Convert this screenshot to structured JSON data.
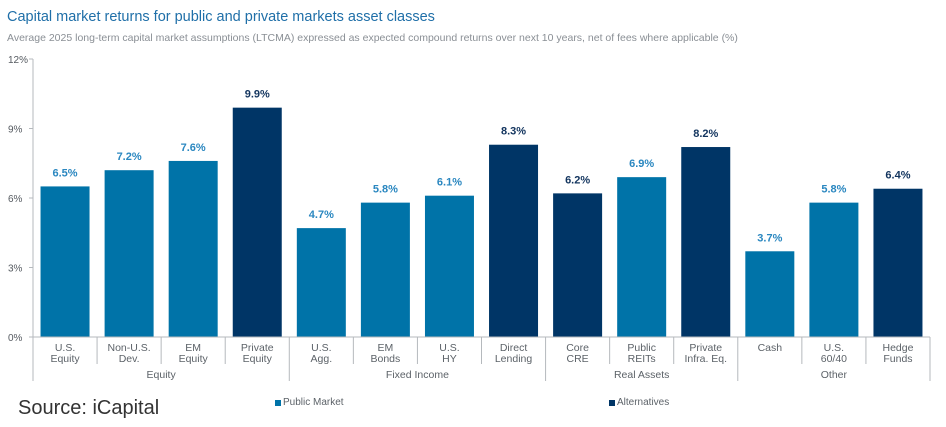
{
  "chart_data": {
    "type": "bar",
    "title": "Capital market returns for public and private markets asset classes",
    "subtitle": "Average 2025 long-term capital market assumptions (LTCMA) expressed as expected compound returns over next 10 years, net of fees where applicable (%)",
    "xlabel": "",
    "ylabel": "",
    "ylim": [
      0,
      12
    ],
    "yticks": [
      0,
      3,
      6,
      9,
      12
    ],
    "ytick_labels": [
      "0%",
      "3%",
      "6%",
      "9%",
      "12%"
    ],
    "grid": false,
    "legend_position": "bottom",
    "categories": [
      {
        "lines": [
          "U.S.",
          "Equity"
        ],
        "value": 6.5,
        "label": "6.5%",
        "series": "Public Market"
      },
      {
        "lines": [
          "Non-U.S.",
          "Dev."
        ],
        "value": 7.2,
        "label": "7.2%",
        "series": "Public Market"
      },
      {
        "lines": [
          "EM",
          "Equity"
        ],
        "value": 7.6,
        "label": "7.6%",
        "series": "Public Market"
      },
      {
        "lines": [
          "Private",
          "Equity"
        ],
        "value": 9.9,
        "label": "9.9%",
        "series": "Alternatives"
      },
      {
        "lines": [
          "U.S.",
          "Agg."
        ],
        "value": 4.7,
        "label": "4.7%",
        "series": "Public Market"
      },
      {
        "lines": [
          "EM",
          "Bonds"
        ],
        "value": 5.8,
        "label": "5.8%",
        "series": "Public Market"
      },
      {
        "lines": [
          "U.S.",
          "HY"
        ],
        "value": 6.1,
        "label": "6.1%",
        "series": "Public Market"
      },
      {
        "lines": [
          "Direct",
          "Lending"
        ],
        "value": 8.3,
        "label": "8.3%",
        "series": "Alternatives"
      },
      {
        "lines": [
          "Core",
          "CRE"
        ],
        "value": 6.2,
        "label": "6.2%",
        "series": "Alternatives"
      },
      {
        "lines": [
          "Public",
          "REITs"
        ],
        "value": 6.9,
        "label": "6.9%",
        "series": "Public Market"
      },
      {
        "lines": [
          "Private",
          "Infra. Eq."
        ],
        "value": 8.2,
        "label": "8.2%",
        "series": "Alternatives"
      },
      {
        "lines": [
          "Cash"
        ],
        "value": 3.7,
        "label": "3.7%",
        "series": "Public Market"
      },
      {
        "lines": [
          "U.S.",
          "60/40"
        ],
        "value": 5.8,
        "label": "5.8%",
        "series": "Public Market"
      },
      {
        "lines": [
          "Hedge",
          "Funds"
        ],
        "value": 6.4,
        "label": "6.4%",
        "series": "Alternatives"
      }
    ],
    "groups": [
      {
        "name": "Equity",
        "count": 4
      },
      {
        "name": "Fixed Income",
        "count": 4
      },
      {
        "name": "Real Assets",
        "count": 3
      },
      {
        "name": "Other",
        "count": 3
      }
    ],
    "series": [
      {
        "name": "Public Market",
        "color": "#0073a8",
        "label_color": "#2a87c0"
      },
      {
        "name": "Alternatives",
        "color": "#003566",
        "label_color": "#12345e"
      }
    ]
  },
  "source": "Source: iCapital"
}
